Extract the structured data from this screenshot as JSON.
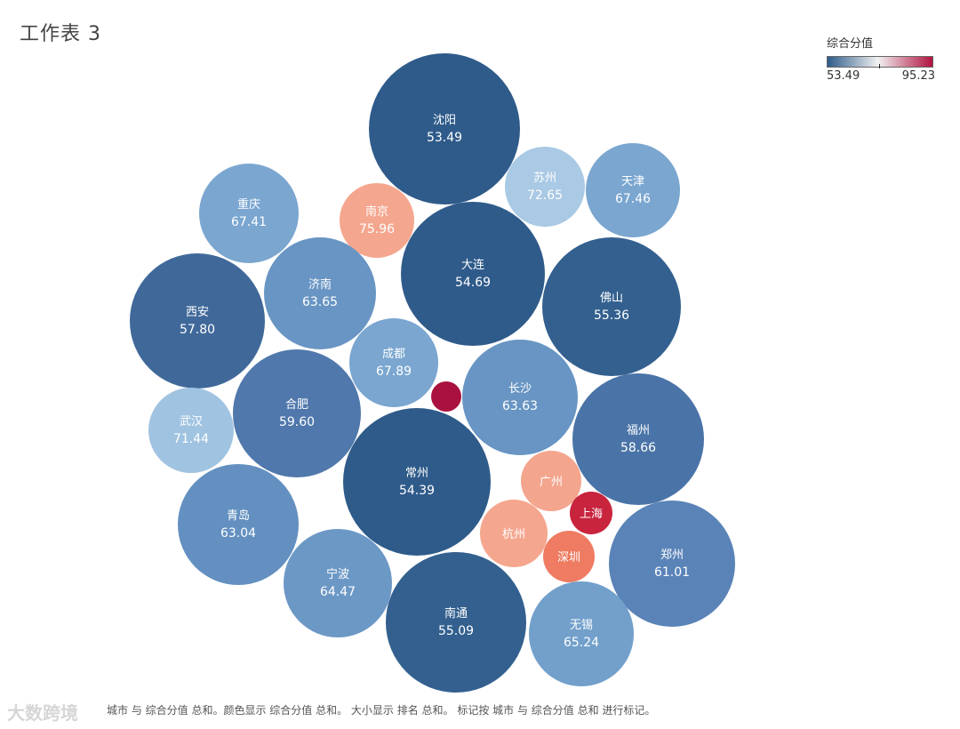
{
  "sheet_title": "工作表 3",
  "legend": {
    "title": "综合分值",
    "min_label": "53.49",
    "max_label": "95.23",
    "low_color": "#2e5b8a",
    "mid_color": "#f1f1f1",
    "high_color": "#b0123e"
  },
  "caption": "城市 与 综合分值 总和。颜色显示 综合分值 总和。 大小显示 排名 总和。 标记按 城市 与 综合分值 总和 进行标记。",
  "watermark": "大数跨境",
  "chart_data": {
    "type": "bubble",
    "title": "工作表 3",
    "color_measure": "综合分值",
    "color_range": [
      53.49,
      95.23
    ],
    "bubbles": [
      {
        "name": "沈阳",
        "value": 53.49,
        "label": "53.49",
        "color": "#2f5b8a"
      },
      {
        "name": "苏州",
        "value": 72.65,
        "label": "72.65",
        "color": "#a9c9e4"
      },
      {
        "name": "天津",
        "value": 67.46,
        "label": "67.46",
        "color": "#7aa6d0"
      },
      {
        "name": "重庆",
        "value": 67.41,
        "label": "67.41",
        "color": "#7aa6d0"
      },
      {
        "name": "南京",
        "value": 75.96,
        "label": "75.96",
        "color": "#f5a68e"
      },
      {
        "name": "大连",
        "value": 54.69,
        "label": "54.69",
        "color": "#2f5b8a"
      },
      {
        "name": "济南",
        "value": 63.65,
        "label": "63.65",
        "color": "#6895c3"
      },
      {
        "name": "西安",
        "value": 57.8,
        "label": "57.80",
        "color": "#40699a"
      },
      {
        "name": "佛山",
        "value": 55.36,
        "label": "55.36",
        "color": "#33608f"
      },
      {
        "name": "成都",
        "value": 67.89,
        "label": "67.89",
        "color": "#7aa6d0"
      },
      {
        "name": "长沙",
        "value": 63.63,
        "label": "63.63",
        "color": "#6895c3"
      },
      {
        "name": "",
        "value": 95.23,
        "label": "",
        "color": "#a9123f"
      },
      {
        "name": "合肥",
        "value": 59.6,
        "label": "59.60",
        "color": "#5078ac"
      },
      {
        "name": "武汉",
        "value": 71.44,
        "label": "71.44",
        "color": "#a0c3e1"
      },
      {
        "name": "福州",
        "value": 58.66,
        "label": "58.66",
        "color": "#4a74a8"
      },
      {
        "name": "常州",
        "value": 54.39,
        "label": "54.39",
        "color": "#2f5b8a"
      },
      {
        "name": "广州",
        "value": null,
        "label": "",
        "color": "#f4a58d"
      },
      {
        "name": "上海",
        "value": null,
        "label": "",
        "color": "#c9243e"
      },
      {
        "name": "杭州",
        "value": null,
        "label": "",
        "color": "#f5a68e"
      },
      {
        "name": "深圳",
        "value": null,
        "label": "",
        "color": "#ee7b62"
      },
      {
        "name": "青岛",
        "value": 63.04,
        "label": "63.04",
        "color": "#6390c0"
      },
      {
        "name": "郑州",
        "value": 61.01,
        "label": "61.01",
        "color": "#5a84b8"
      },
      {
        "name": "宁波",
        "value": 64.47,
        "label": "64.47",
        "color": "#6c98c6"
      },
      {
        "name": "南通",
        "value": 55.09,
        "label": "55.09",
        "color": "#33608f"
      },
      {
        "name": "无锡",
        "value": 65.24,
        "label": "65.24",
        "color": "#72a0cb"
      }
    ]
  }
}
